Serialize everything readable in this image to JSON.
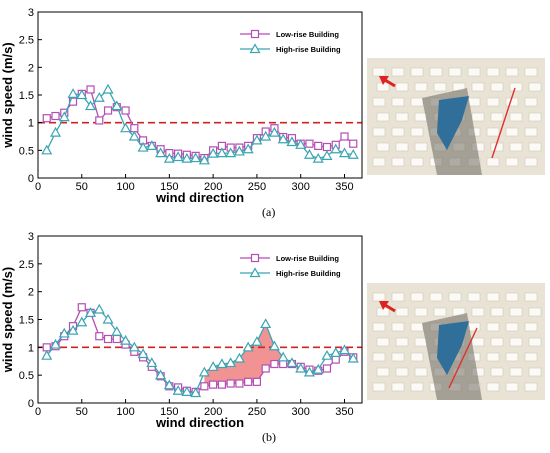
{
  "colors": {
    "low_rise": "#b44db4",
    "high_rise": "#3aa5b1",
    "threshold": "#cc2222",
    "fill_region": "#f08080",
    "photo_bg": "#e9e3d6",
    "footprint": "#2f6f9a"
  },
  "chart_data": [
    {
      "type": "line",
      "panel_label": "(a)",
      "xlabel": "wind direction",
      "ylabel": "wind speed (m/s)",
      "xlim": [
        0,
        370
      ],
      "ylim": [
        0,
        3
      ],
      "xticks": [
        0,
        50,
        100,
        150,
        200,
        250,
        300,
        350
      ],
      "yticks": [
        0,
        0.5,
        1,
        1.5,
        2,
        2.5,
        3
      ],
      "threshold": 1.0,
      "grid": false,
      "legend_position": "top-right",
      "x": [
        10,
        20,
        30,
        40,
        50,
        60,
        70,
        80,
        90,
        100,
        110,
        120,
        130,
        140,
        150,
        160,
        170,
        180,
        190,
        200,
        210,
        220,
        230,
        240,
        250,
        260,
        270,
        280,
        290,
        300,
        310,
        320,
        330,
        340,
        350,
        360
      ],
      "series": [
        {
          "name": "Low-rise Building",
          "marker": "square",
          "values": [
            1.08,
            1.12,
            1.18,
            1.38,
            1.52,
            1.6,
            1.04,
            1.22,
            1.28,
            1.22,
            0.9,
            0.68,
            0.58,
            0.52,
            0.45,
            0.44,
            0.42,
            0.4,
            0.36,
            0.5,
            0.58,
            0.55,
            0.55,
            0.58,
            0.72,
            0.84,
            0.9,
            0.74,
            0.72,
            0.62,
            0.62,
            0.58,
            0.56,
            0.6,
            0.75,
            0.62
          ]
        },
        {
          "name": "High-rise Building",
          "marker": "triangle",
          "values": [
            0.5,
            0.82,
            1.1,
            1.52,
            1.5,
            1.3,
            1.45,
            1.6,
            1.3,
            0.9,
            0.75,
            0.55,
            0.58,
            0.45,
            0.35,
            0.38,
            0.35,
            0.36,
            0.32,
            0.44,
            0.45,
            0.45,
            0.48,
            0.52,
            0.68,
            0.75,
            0.82,
            0.7,
            0.65,
            0.6,
            0.42,
            0.35,
            0.4,
            0.52,
            0.45,
            0.42
          ]
        }
      ]
    },
    {
      "type": "line",
      "panel_label": "(b)",
      "xlabel": "wind direction",
      "ylabel": "wind speed (m/s)",
      "xlim": [
        0,
        370
      ],
      "ylim": [
        0,
        3
      ],
      "xticks": [
        0,
        50,
        100,
        150,
        200,
        250,
        300,
        350
      ],
      "yticks": [
        0,
        0.5,
        1,
        1.5,
        2,
        2.5,
        3
      ],
      "threshold": 1.0,
      "grid": false,
      "legend_position": "top-right",
      "shaded_region": [
        190,
        280
      ],
      "x": [
        10,
        20,
        30,
        40,
        50,
        60,
        70,
        80,
        90,
        100,
        110,
        120,
        130,
        140,
        150,
        160,
        170,
        180,
        190,
        200,
        210,
        220,
        230,
        240,
        250,
        260,
        270,
        280,
        290,
        300,
        310,
        320,
        330,
        340,
        350,
        360
      ],
      "series": [
        {
          "name": "Low-rise Building",
          "marker": "square",
          "values": [
            1.0,
            1.02,
            1.2,
            1.38,
            1.72,
            1.62,
            1.2,
            1.15,
            1.15,
            1.05,
            0.92,
            0.82,
            0.65,
            0.48,
            0.3,
            0.28,
            0.22,
            0.2,
            0.3,
            0.33,
            0.33,
            0.35,
            0.35,
            0.38,
            0.38,
            0.62,
            0.7,
            0.7,
            0.7,
            0.65,
            0.6,
            0.58,
            0.62,
            0.78,
            0.92,
            0.82
          ]
        },
        {
          "name": "High-rise Building",
          "marker": "triangle",
          "values": [
            0.85,
            1.05,
            1.25,
            1.3,
            1.45,
            1.62,
            1.68,
            1.5,
            1.28,
            1.12,
            1.0,
            0.88,
            0.72,
            0.5,
            0.32,
            0.22,
            0.2,
            0.18,
            0.55,
            0.65,
            0.7,
            0.72,
            0.8,
            1.0,
            1.1,
            1.42,
            1.02,
            0.82,
            0.72,
            0.62,
            0.55,
            0.6,
            0.85,
            0.9,
            0.95,
            0.8
          ]
        }
      ]
    }
  ]
}
